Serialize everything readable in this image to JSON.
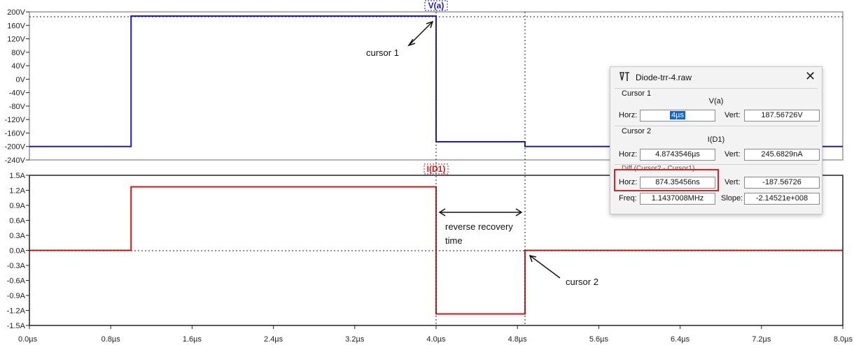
{
  "x_axis": {
    "ticks": [
      "0.0µs",
      "0.8µs",
      "1.6µs",
      "2.4µs",
      "3.2µs",
      "4.0µs",
      "4.8µs",
      "5.6µs",
      "6.4µs",
      "7.2µs",
      "8.0µs"
    ]
  },
  "pane_v": {
    "label": "V(a)",
    "color": "#1a1acc",
    "ticks": [
      "200V",
      "160V",
      "120V",
      "80V",
      "40V",
      "0V",
      "-40V",
      "-80V",
      "-120V",
      "-160V",
      "-200V",
      "-240V"
    ]
  },
  "pane_i": {
    "label": "I(D1)",
    "color": "#dd1111",
    "ticks": [
      "1.5A",
      "1.2A",
      "0.9A",
      "0.6A",
      "0.3A",
      "0.0A",
      "-0.3A",
      "-0.6A",
      "-0.9A",
      "-1.2A",
      "-1.5A"
    ]
  },
  "annotations": {
    "cursor1": "cursor 1",
    "reverse1": "reverse recovery",
    "reverse2": "time",
    "cursor2": "cursor 2"
  },
  "chart_data": [
    {
      "type": "line",
      "series": [
        {
          "name": "V(a)",
          "x": [
            0,
            1.0,
            1.0,
            4.0,
            4.0,
            4.874,
            4.874,
            8.0
          ],
          "y": [
            -200,
            -200,
            187.57,
            187.57,
            -186,
            -186,
            -200,
            -200
          ]
        }
      ],
      "xlim": [
        0,
        8
      ],
      "ylim": [
        -240,
        200
      ],
      "x_unit": "µs",
      "y_unit": "V"
    },
    {
      "type": "line",
      "series": [
        {
          "name": "I(D1)",
          "x": [
            0,
            1.0,
            1.0,
            4.0,
            4.0,
            4.874,
            4.874,
            8.0
          ],
          "y": [
            0,
            0,
            1.27,
            1.27,
            -1.27,
            -1.27,
            0,
            0
          ]
        }
      ],
      "xlim": [
        0,
        8
      ],
      "ylim": [
        -1.5,
        1.5
      ],
      "x_unit": "µs",
      "y_unit": "A"
    }
  ],
  "dialog": {
    "title": "Diode-trr-4.raw",
    "cursor1": {
      "heading": "Cursor 1",
      "trace": "V(a)",
      "horz_label": "Horz:",
      "horz": "4µs",
      "vert_label": "Vert:",
      "vert": "187.56726V"
    },
    "cursor2": {
      "heading": "Cursor 2",
      "trace": "I(D1)",
      "horz_label": "Horz:",
      "horz": "4.8743546µs",
      "vert_label": "Vert:",
      "vert": "245.6829nA"
    },
    "diff": {
      "heading": "Diff (Cursor2 - Cursor1)",
      "horz_label": "Horz:",
      "horz": "874.35456ns",
      "vert_label": "Vert:",
      "vert": "-187.56726",
      "freq_label": "Freq:",
      "freq": "1.1437008MHz",
      "slope_label": "Slope:",
      "slope": "-2.14521e+008"
    }
  }
}
